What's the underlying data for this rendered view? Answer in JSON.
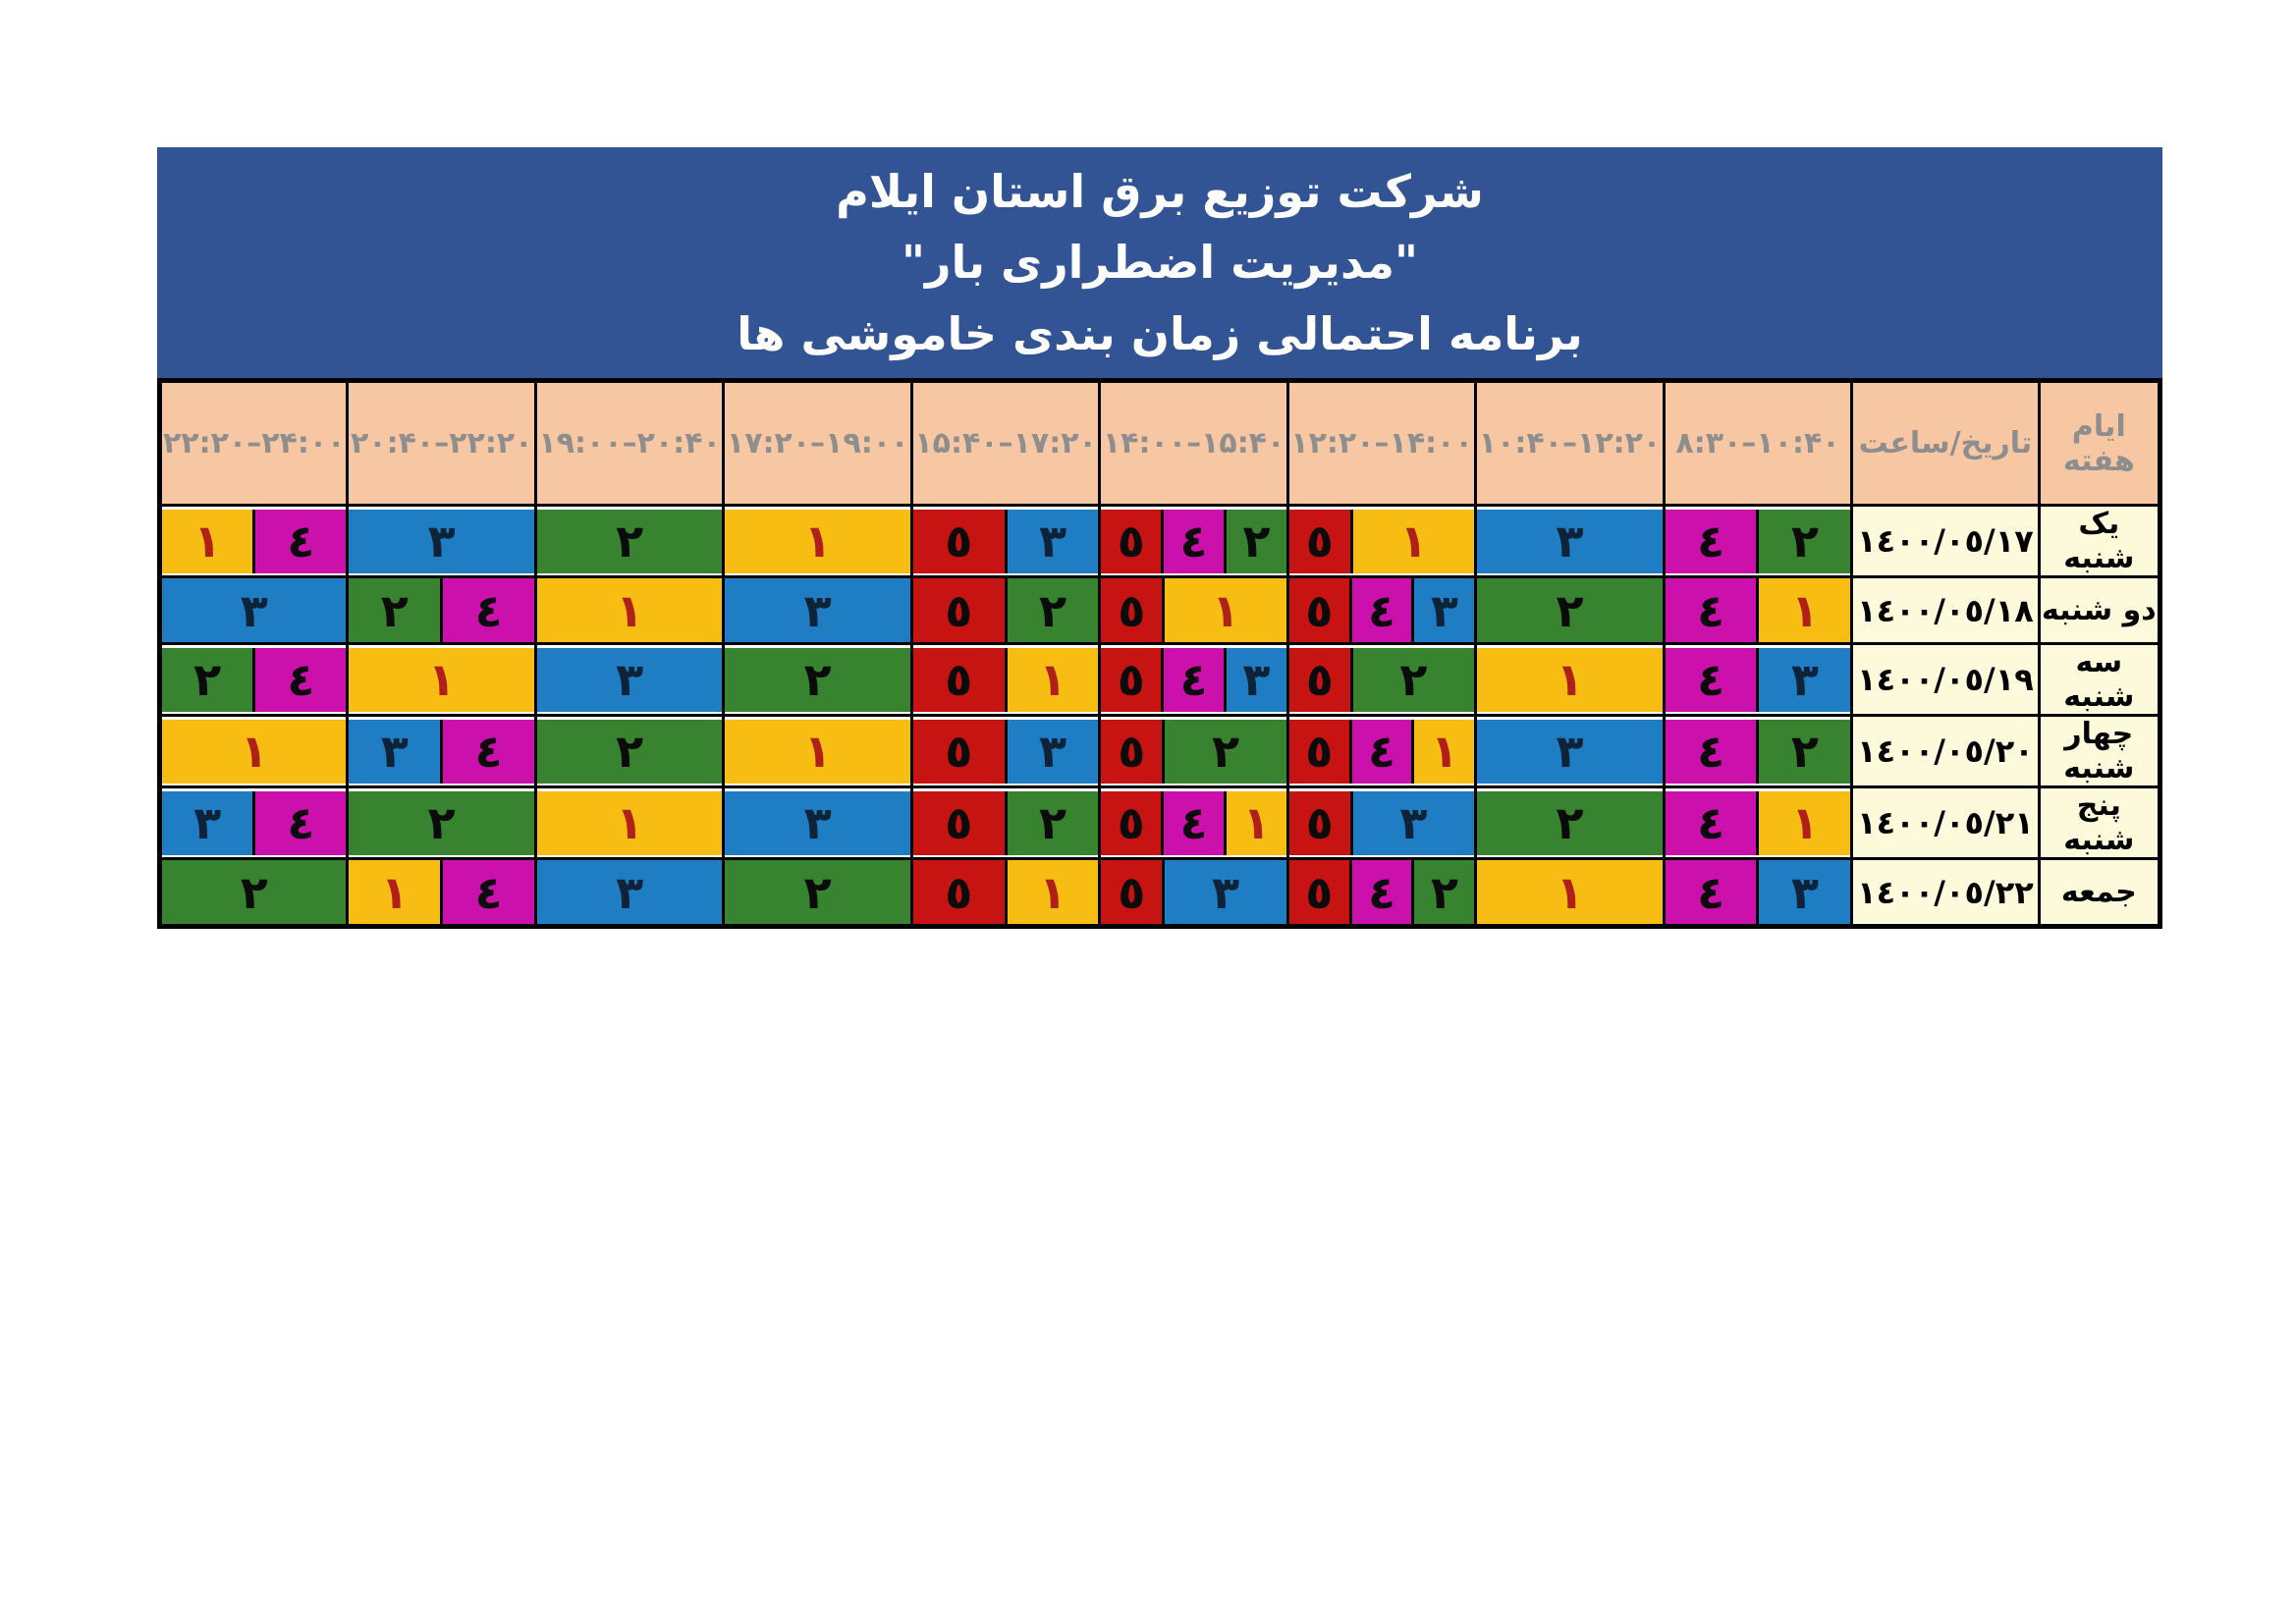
{
  "title": {
    "line1": "شرکت توزیع برق استان ایلام",
    "line2": "\"مدیریت اضطراری بار\"",
    "line3": "برنامه احتمالی زمان بندی خاموشی ها"
  },
  "table": {
    "header": {
      "day_label": "ایام هفته",
      "date_label": "تاریخ/ساعت",
      "time_slots": [
        "۲۲:۲۰–۲۴:۰۰",
        "۲۰:۴۰–۲۲:۲۰",
        "۱۹:۰۰–۲۰:۴۰",
        "۱۷:۲۰–۱۹:۰۰",
        "۱۵:۴۰–۱۷:۲۰",
        "۱۴:۰۰–۱۵:۴۰",
        "۱۲:۲۰–۱۴:۰۰",
        "۱۰:۴۰–۱۲:۲۰",
        "۸:۳۰–۱۰:۴۰"
      ]
    },
    "rows": [
      {
        "day": "یک شنبه",
        "date": "۱٤۰۰/۰٥/۱۷",
        "slots": [
          [
            {
              "n": "۱",
              "g": "1",
              "w": 1
            },
            {
              "n": "٤",
              "g": "4",
              "w": 1
            }
          ],
          [
            {
              "n": "۳",
              "g": "3",
              "w": 1
            }
          ],
          [
            {
              "n": "۲",
              "g": "2",
              "w": 1
            }
          ],
          [
            {
              "n": "۱",
              "g": "1",
              "w": 1
            }
          ],
          [
            {
              "n": "٥",
              "g": "5",
              "w": 1
            },
            {
              "n": "۳",
              "g": "3",
              "w": 1
            }
          ],
          [
            {
              "n": "٥",
              "g": "5",
              "w": 1
            },
            {
              "n": "٤",
              "g": "4",
              "w": 1
            },
            {
              "n": "۲",
              "g": "2",
              "w": 1
            }
          ],
          [
            {
              "n": "٥",
              "g": "5",
              "w": 1
            },
            {
              "n": "۱",
              "g": "1",
              "w": 2
            }
          ],
          [
            {
              "n": "۳",
              "g": "3",
              "w": 1
            }
          ],
          [
            {
              "n": "٤",
              "g": "4",
              "w": 1
            },
            {
              "n": "۲",
              "g": "2",
              "w": 1
            }
          ]
        ]
      },
      {
        "day": "دو شنبه",
        "date": "۱٤۰۰/۰٥/۱۸",
        "slots": [
          [
            {
              "n": "۳",
              "g": "3",
              "w": 1
            }
          ],
          [
            {
              "n": "۲",
              "g": "2",
              "w": 1
            },
            {
              "n": "٤",
              "g": "4",
              "w": 1
            }
          ],
          [
            {
              "n": "۱",
              "g": "1",
              "w": 1
            }
          ],
          [
            {
              "n": "۳",
              "g": "3",
              "w": 1
            }
          ],
          [
            {
              "n": "٥",
              "g": "5",
              "w": 1
            },
            {
              "n": "۲",
              "g": "2",
              "w": 1
            }
          ],
          [
            {
              "n": "٥",
              "g": "5",
              "w": 1
            },
            {
              "n": "۱",
              "g": "1",
              "w": 2
            }
          ],
          [
            {
              "n": "٥",
              "g": "5",
              "w": 1
            },
            {
              "n": "٤",
              "g": "4",
              "w": 1
            },
            {
              "n": "۳",
              "g": "3",
              "w": 1
            }
          ],
          [
            {
              "n": "۲",
              "g": "2",
              "w": 1
            }
          ],
          [
            {
              "n": "٤",
              "g": "4",
              "w": 1
            },
            {
              "n": "۱",
              "g": "1",
              "w": 1
            }
          ]
        ]
      },
      {
        "day": "سه شنبه",
        "date": "۱٤۰۰/۰٥/۱۹",
        "slots": [
          [
            {
              "n": "۲",
              "g": "2",
              "w": 1
            },
            {
              "n": "٤",
              "g": "4",
              "w": 1
            }
          ],
          [
            {
              "n": "۱",
              "g": "1",
              "w": 1
            }
          ],
          [
            {
              "n": "۳",
              "g": "3",
              "w": 1
            }
          ],
          [
            {
              "n": "۲",
              "g": "2",
              "w": 1
            }
          ],
          [
            {
              "n": "٥",
              "g": "5",
              "w": 1
            },
            {
              "n": "۱",
              "g": "1",
              "w": 1
            }
          ],
          [
            {
              "n": "٥",
              "g": "5",
              "w": 1
            },
            {
              "n": "٤",
              "g": "4",
              "w": 1
            },
            {
              "n": "۳",
              "g": "3",
              "w": 1
            }
          ],
          [
            {
              "n": "٥",
              "g": "5",
              "w": 1
            },
            {
              "n": "۲",
              "g": "2",
              "w": 2
            }
          ],
          [
            {
              "n": "۱",
              "g": "1",
              "w": 1
            }
          ],
          [
            {
              "n": "٤",
              "g": "4",
              "w": 1
            },
            {
              "n": "۳",
              "g": "3",
              "w": 1
            }
          ]
        ]
      },
      {
        "day": "چهار شنبه",
        "date": "۱٤۰۰/۰٥/۲۰",
        "slots": [
          [
            {
              "n": "۱",
              "g": "1",
              "w": 1
            }
          ],
          [
            {
              "n": "۳",
              "g": "3",
              "w": 1
            },
            {
              "n": "٤",
              "g": "4",
              "w": 1
            }
          ],
          [
            {
              "n": "۲",
              "g": "2",
              "w": 1
            }
          ],
          [
            {
              "n": "۱",
              "g": "1",
              "w": 1
            }
          ],
          [
            {
              "n": "٥",
              "g": "5",
              "w": 1
            },
            {
              "n": "۳",
              "g": "3",
              "w": 1
            }
          ],
          [
            {
              "n": "٥",
              "g": "5",
              "w": 1
            },
            {
              "n": "۲",
              "g": "2",
              "w": 2
            }
          ],
          [
            {
              "n": "٥",
              "g": "5",
              "w": 1
            },
            {
              "n": "٤",
              "g": "4",
              "w": 1
            },
            {
              "n": "۱",
              "g": "1",
              "w": 1
            }
          ],
          [
            {
              "n": "۳",
              "g": "3",
              "w": 1
            }
          ],
          [
            {
              "n": "٤",
              "g": "4",
              "w": 1
            },
            {
              "n": "۲",
              "g": "2",
              "w": 1
            }
          ]
        ]
      },
      {
        "day": "پنج شنبه",
        "date": "۱٤۰۰/۰٥/۲۱",
        "slots": [
          [
            {
              "n": "۳",
              "g": "3",
              "w": 1
            },
            {
              "n": "٤",
              "g": "4",
              "w": 1
            }
          ],
          [
            {
              "n": "۲",
              "g": "2",
              "w": 1
            }
          ],
          [
            {
              "n": "۱",
              "g": "1",
              "w": 1
            }
          ],
          [
            {
              "n": "۳",
              "g": "3",
              "w": 1
            }
          ],
          [
            {
              "n": "٥",
              "g": "5",
              "w": 1
            },
            {
              "n": "۲",
              "g": "2",
              "w": 1
            }
          ],
          [
            {
              "n": "٥",
              "g": "5",
              "w": 1
            },
            {
              "n": "٤",
              "g": "4",
              "w": 1
            },
            {
              "n": "۱",
              "g": "1",
              "w": 1
            }
          ],
          [
            {
              "n": "٥",
              "g": "5",
              "w": 1
            },
            {
              "n": "۳",
              "g": "3",
              "w": 2
            }
          ],
          [
            {
              "n": "۲",
              "g": "2",
              "w": 1
            }
          ],
          [
            {
              "n": "٤",
              "g": "4",
              "w": 1
            },
            {
              "n": "۱",
              "g": "1",
              "w": 1
            }
          ]
        ]
      },
      {
        "day": "جمعه",
        "date": "۱٤۰۰/۰٥/۲۲",
        "slots": [
          [
            {
              "n": "۲",
              "g": "2",
              "w": 1
            }
          ],
          [
            {
              "n": "۱",
              "g": "1",
              "w": 1
            },
            {
              "n": "٤",
              "g": "4",
              "w": 1
            }
          ],
          [
            {
              "n": "۳",
              "g": "3",
              "w": 1
            }
          ],
          [
            {
              "n": "۲",
              "g": "2",
              "w": 1
            }
          ],
          [
            {
              "n": "٥",
              "g": "5",
              "w": 1
            },
            {
              "n": "۱",
              "g": "1",
              "w": 1
            }
          ],
          [
            {
              "n": "٥",
              "g": "5",
              "w": 1
            },
            {
              "n": "۳",
              "g": "3",
              "w": 2
            }
          ],
          [
            {
              "n": "٥",
              "g": "5",
              "w": 1
            },
            {
              "n": "٤",
              "g": "4",
              "w": 1
            },
            {
              "n": "۲",
              "g": "2",
              "w": 1
            }
          ],
          [
            {
              "n": "۱",
              "g": "1",
              "w": 1
            }
          ],
          [
            {
              "n": "٤",
              "g": "4",
              "w": 1
            },
            {
              "n": "۳",
              "g": "3",
              "w": 1
            }
          ]
        ]
      }
    ]
  },
  "colors": {
    "title_bar_bg": "#325394",
    "title_text": "#FFFFFF",
    "header_bg": "#F6C7A2",
    "header_text": "#8E8E8E",
    "day_date_bg": "#FDFADC",
    "grid_line": "#000000",
    "groups": {
      "1": {
        "bg": "#F7BD13",
        "fg": "#B02018"
      },
      "2": {
        "bg": "#37832F",
        "fg": "#0B0B0B"
      },
      "3": {
        "bg": "#1F7DC4",
        "fg": "#0E2238"
      },
      "4": {
        "bg": "#CC10AC",
        "fg": "#0B0B0B"
      },
      "5": {
        "bg": "#C81313",
        "fg": "#0B0B0B"
      }
    }
  }
}
